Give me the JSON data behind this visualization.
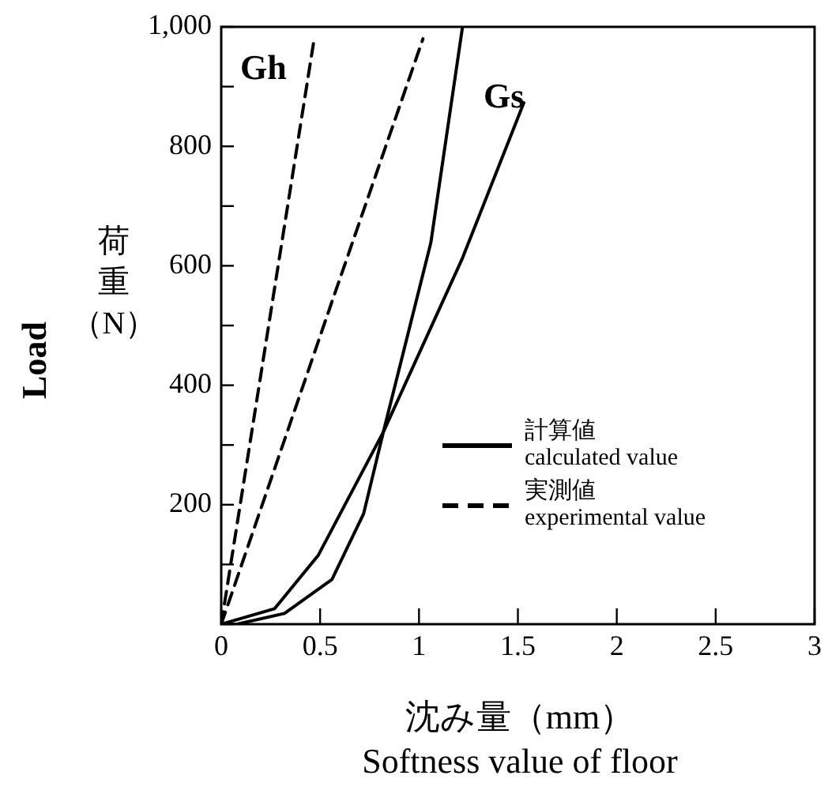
{
  "chart_data": {
    "type": "line",
    "xlabel": "沈み量（mm）\nSoftness value of floor",
    "ylabel": "Load\n荷重（N）",
    "xlim": [
      0,
      3
    ],
    "xticks": [
      0,
      0.5,
      1,
      1.5,
      2,
      2.5,
      3
    ],
    "ylim": [
      0,
      1000
    ],
    "yticks": [
      {
        "value": 0,
        "label": null
      },
      {
        "value": 100,
        "label": null
      },
      200,
      {
        "value": 300,
        "label": null
      },
      400,
      {
        "value": 500,
        "label": null
      },
      600,
      {
        "value": 700,
        "label": null
      },
      800,
      {
        "value": 900,
        "label": null
      },
      {
        "value": 1000,
        "label": "1,000"
      }
    ],
    "grid": false,
    "marker": "none",
    "series": [
      {
        "color": "#000000",
        "line_style": "solid",
        "x": [
          0,
          0.08,
          0.32,
          0.56,
          0.72,
          0.82,
          1.06,
          1.22
        ],
        "values": [
          0,
          0,
          18,
          75,
          185,
          322,
          639,
          1000
        ]
      },
      {
        "color": "#000000",
        "line_style": "solid",
        "x": [
          0,
          0.27,
          0.49,
          0.82,
          1.22,
          1.53
        ],
        "values": [
          0,
          26,
          115,
          322,
          613,
          873
        ]
      },
      {
        "color": "#000000",
        "line_style": "dashed",
        "x": [
          0,
          0.47
        ],
        "values": [
          0,
          980
        ]
      },
      {
        "color": "#000000",
        "line_style": "dashed",
        "x": [
          0,
          0.56,
          1.02
        ],
        "values": [
          0,
          540,
          980
        ]
      }
    ],
    "annotations": [
      "計算値\ncalculated value",
      "実測値\nexperimental value",
      "Gh",
      "Gs"
    ]
  }
}
